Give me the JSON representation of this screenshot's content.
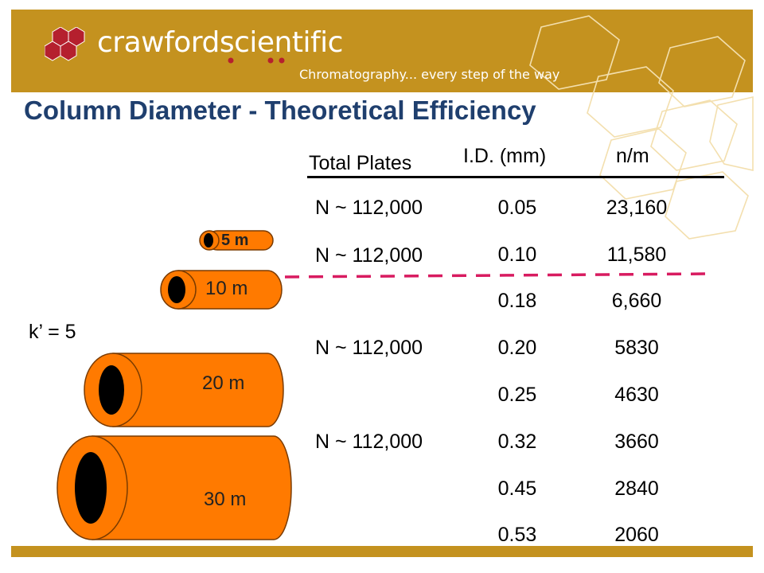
{
  "brand": {
    "name": "crawfordscientific",
    "tagline": "Chromatography... every step of the way",
    "colors": {
      "gold": "#c4921f",
      "red": "#b5202e",
      "white": "#ffffff"
    }
  },
  "slide": {
    "title": "Column Diameter - Theoretical Efficiency",
    "capacity_factor": "k’ = 5"
  },
  "table": {
    "headers": {
      "plates": "Total Plates",
      "id": "I.D. (mm)",
      "nm": "n/m"
    },
    "rows": [
      {
        "plates": "N ~ 112,000",
        "id": "0.05",
        "nm": "23,160"
      },
      {
        "plates": "N ~ 112,000",
        "id": "0.10",
        "nm": "11,580"
      },
      {
        "plates": "",
        "id": "0.18",
        "nm": "6,660"
      },
      {
        "plates": "N ~ 112,000",
        "id": "0.20",
        "nm": "5830"
      },
      {
        "plates": "",
        "id": "0.25",
        "nm": "4630"
      },
      {
        "plates": "N ~ 112,000",
        "id": "0.32",
        "nm": "3660"
      },
      {
        "plates": "",
        "id": "0.45",
        "nm": "2840"
      },
      {
        "plates": "",
        "id": "0.53",
        "nm": "2060"
      }
    ],
    "divider_color": "#d81b60"
  },
  "columns": [
    {
      "length": "5 m"
    },
    {
      "length": "10 m"
    },
    {
      "length": "20 m"
    },
    {
      "length": "30 m"
    }
  ],
  "column_colors": {
    "body": "#ff7a00",
    "bore": "#000000",
    "outline": "#7a3b00"
  }
}
